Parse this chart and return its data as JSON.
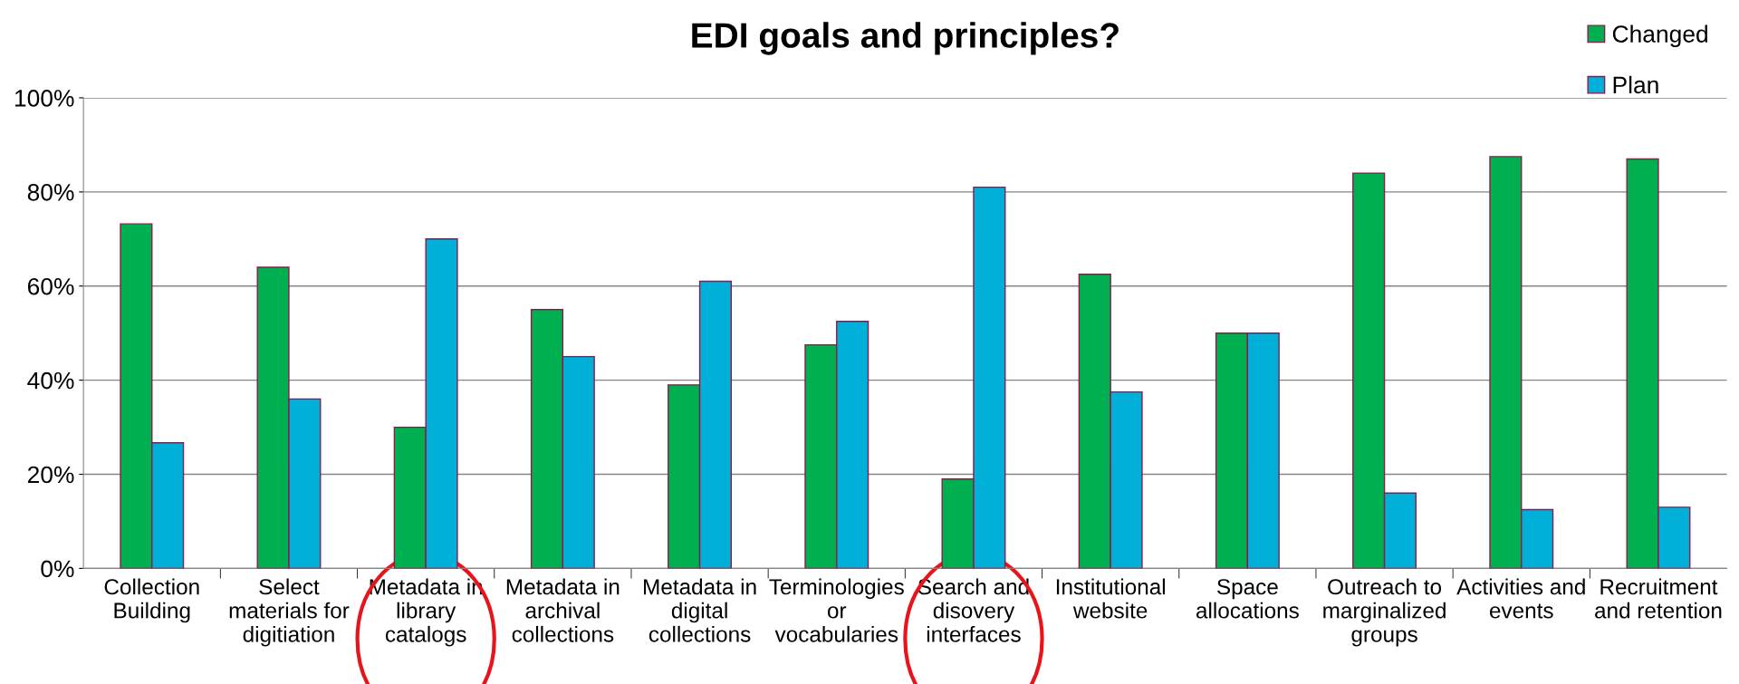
{
  "chart_data": {
    "type": "bar",
    "title": "EDI goals and principles?",
    "categories": [
      "Collection Building",
      "Select materials for digitiation",
      "Metadata in library catalogs",
      "Metadata in archival collections",
      "Metadata in digital collections",
      "Terminologies or vocabularies",
      "Search and disovery interfaces",
      "Institutional website",
      "Space allocations",
      "Outreach to marginalized groups",
      "Activities and events",
      "Recruitment and retention"
    ],
    "series": [
      {
        "name": "Changed",
        "color": "#00b050",
        "values": [
          73.2,
          64,
          30,
          55,
          39,
          47.5,
          19,
          62.5,
          50,
          84,
          87.5,
          87
        ]
      },
      {
        "name": "Plan",
        "color": "#00b0d8",
        "values": [
          26.7,
          36,
          70,
          45,
          61,
          52.5,
          81,
          37.5,
          50,
          16,
          12.5,
          13
        ]
      }
    ],
    "ylim": [
      0,
      100
    ],
    "yticks": [
      {
        "value": 0,
        "label": "0%"
      },
      {
        "value": 20,
        "label": "20%"
      },
      {
        "value": 40,
        "label": "40%"
      },
      {
        "value": 60,
        "label": "60%"
      },
      {
        "value": 80,
        "label": "80%"
      },
      {
        "value": 100,
        "label": "100%"
      }
    ],
    "grid": "y",
    "legend": "top right"
  }
}
